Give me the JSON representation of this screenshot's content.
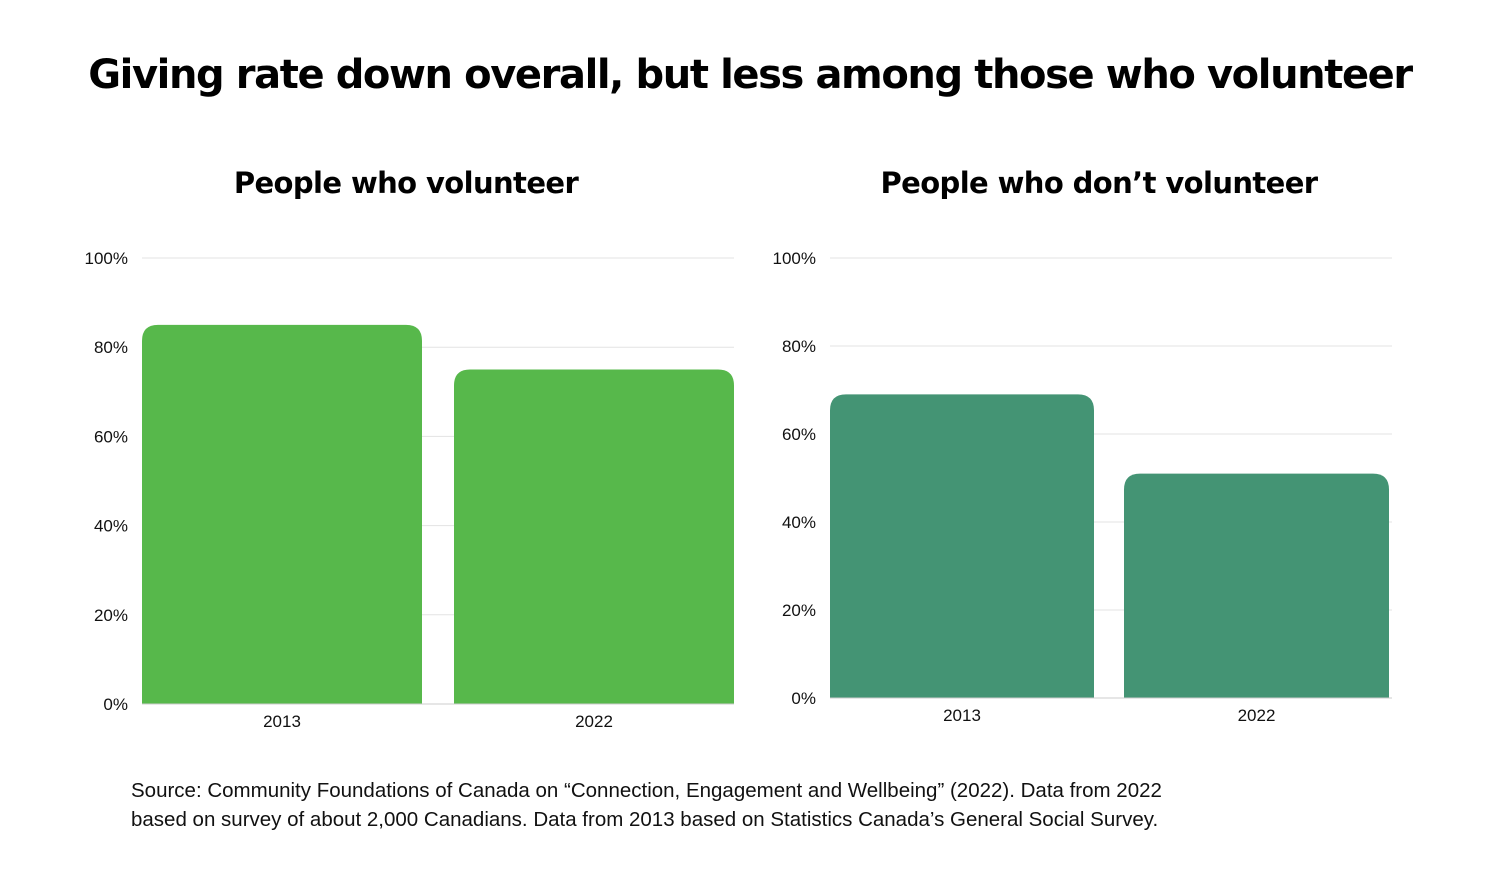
{
  "title": "Giving rate down overall, but less among those who volunteer",
  "colors": {
    "volunteer": "#57b84b",
    "non_volunteer": "#449474",
    "grid": "#e3e3e3",
    "baseline": "#cccccc",
    "text": "#111111"
  },
  "chart_data": [
    {
      "type": "bar",
      "title": "People who volunteer",
      "categories": [
        "2013",
        "2022"
      ],
      "values": [
        85,
        75
      ],
      "ylim": [
        0,
        100
      ],
      "yticks": [
        "0%",
        "20%",
        "40%",
        "60%",
        "80%",
        "100%"
      ],
      "grid": true,
      "color": "#57b84b"
    },
    {
      "type": "bar",
      "title": "People who don’t volunteer",
      "categories": [
        "2013",
        "2022"
      ],
      "values": [
        69,
        51
      ],
      "ylim": [
        0,
        100
      ],
      "yticks": [
        "0%",
        "20%",
        "40%",
        "60%",
        "80%",
        "100%"
      ],
      "grid": true,
      "color": "#449474"
    }
  ],
  "source_lines": [
    "Source: Community Foundations of Canada on “Connection, Engagement and Wellbeing” (2022). Data from 2022",
    "based on survey of about 2,000 Canadians. Data from 2013 based on Statistics Canada’s General Social Survey."
  ]
}
